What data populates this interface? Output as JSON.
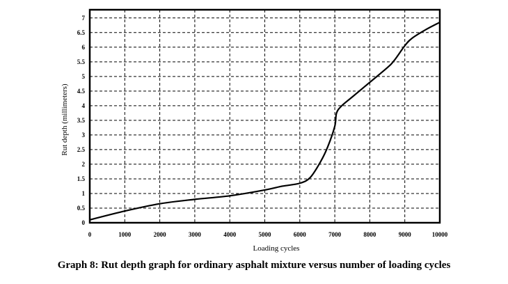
{
  "chart_data": {
    "type": "line",
    "title": "Graph 8: Rut depth graph for ordinary asphalt mixture versus number of loading cycles",
    "xlabel": "Loading cycles",
    "ylabel": "Rut depth (millimeters)",
    "xlim": [
      0,
      10000
    ],
    "ylim": [
      0,
      7
    ],
    "grid": true,
    "xticks": [
      "0",
      "1000",
      "2000",
      "3000",
      "4000",
      "5000",
      "6000",
      "7000",
      "8000",
      "9000",
      "10000"
    ],
    "yticks": [
      "0",
      "0.5",
      "1",
      "1.5",
      "2",
      "2.5",
      "3",
      "3.5",
      "4",
      "4.5",
      "5",
      "5.5",
      "6",
      "6.5",
      "7"
    ],
    "series": [
      {
        "name": "Ordinary asphalt mixture",
        "color": "#000000",
        "x": [
          0,
          1000,
          2000,
          3000,
          4000,
          5000,
          5500,
          6000,
          6300,
          6600,
          6800,
          7000,
          7050,
          7200,
          7500,
          8000,
          8500,
          8700,
          9000,
          9200,
          9600,
          10000
        ],
        "y": [
          0.1,
          0.4,
          0.65,
          0.8,
          0.92,
          1.12,
          1.25,
          1.35,
          1.55,
          2.1,
          2.6,
          3.3,
          3.75,
          4.0,
          4.3,
          4.8,
          5.3,
          5.55,
          6.05,
          6.3,
          6.6,
          6.85
        ]
      }
    ]
  }
}
